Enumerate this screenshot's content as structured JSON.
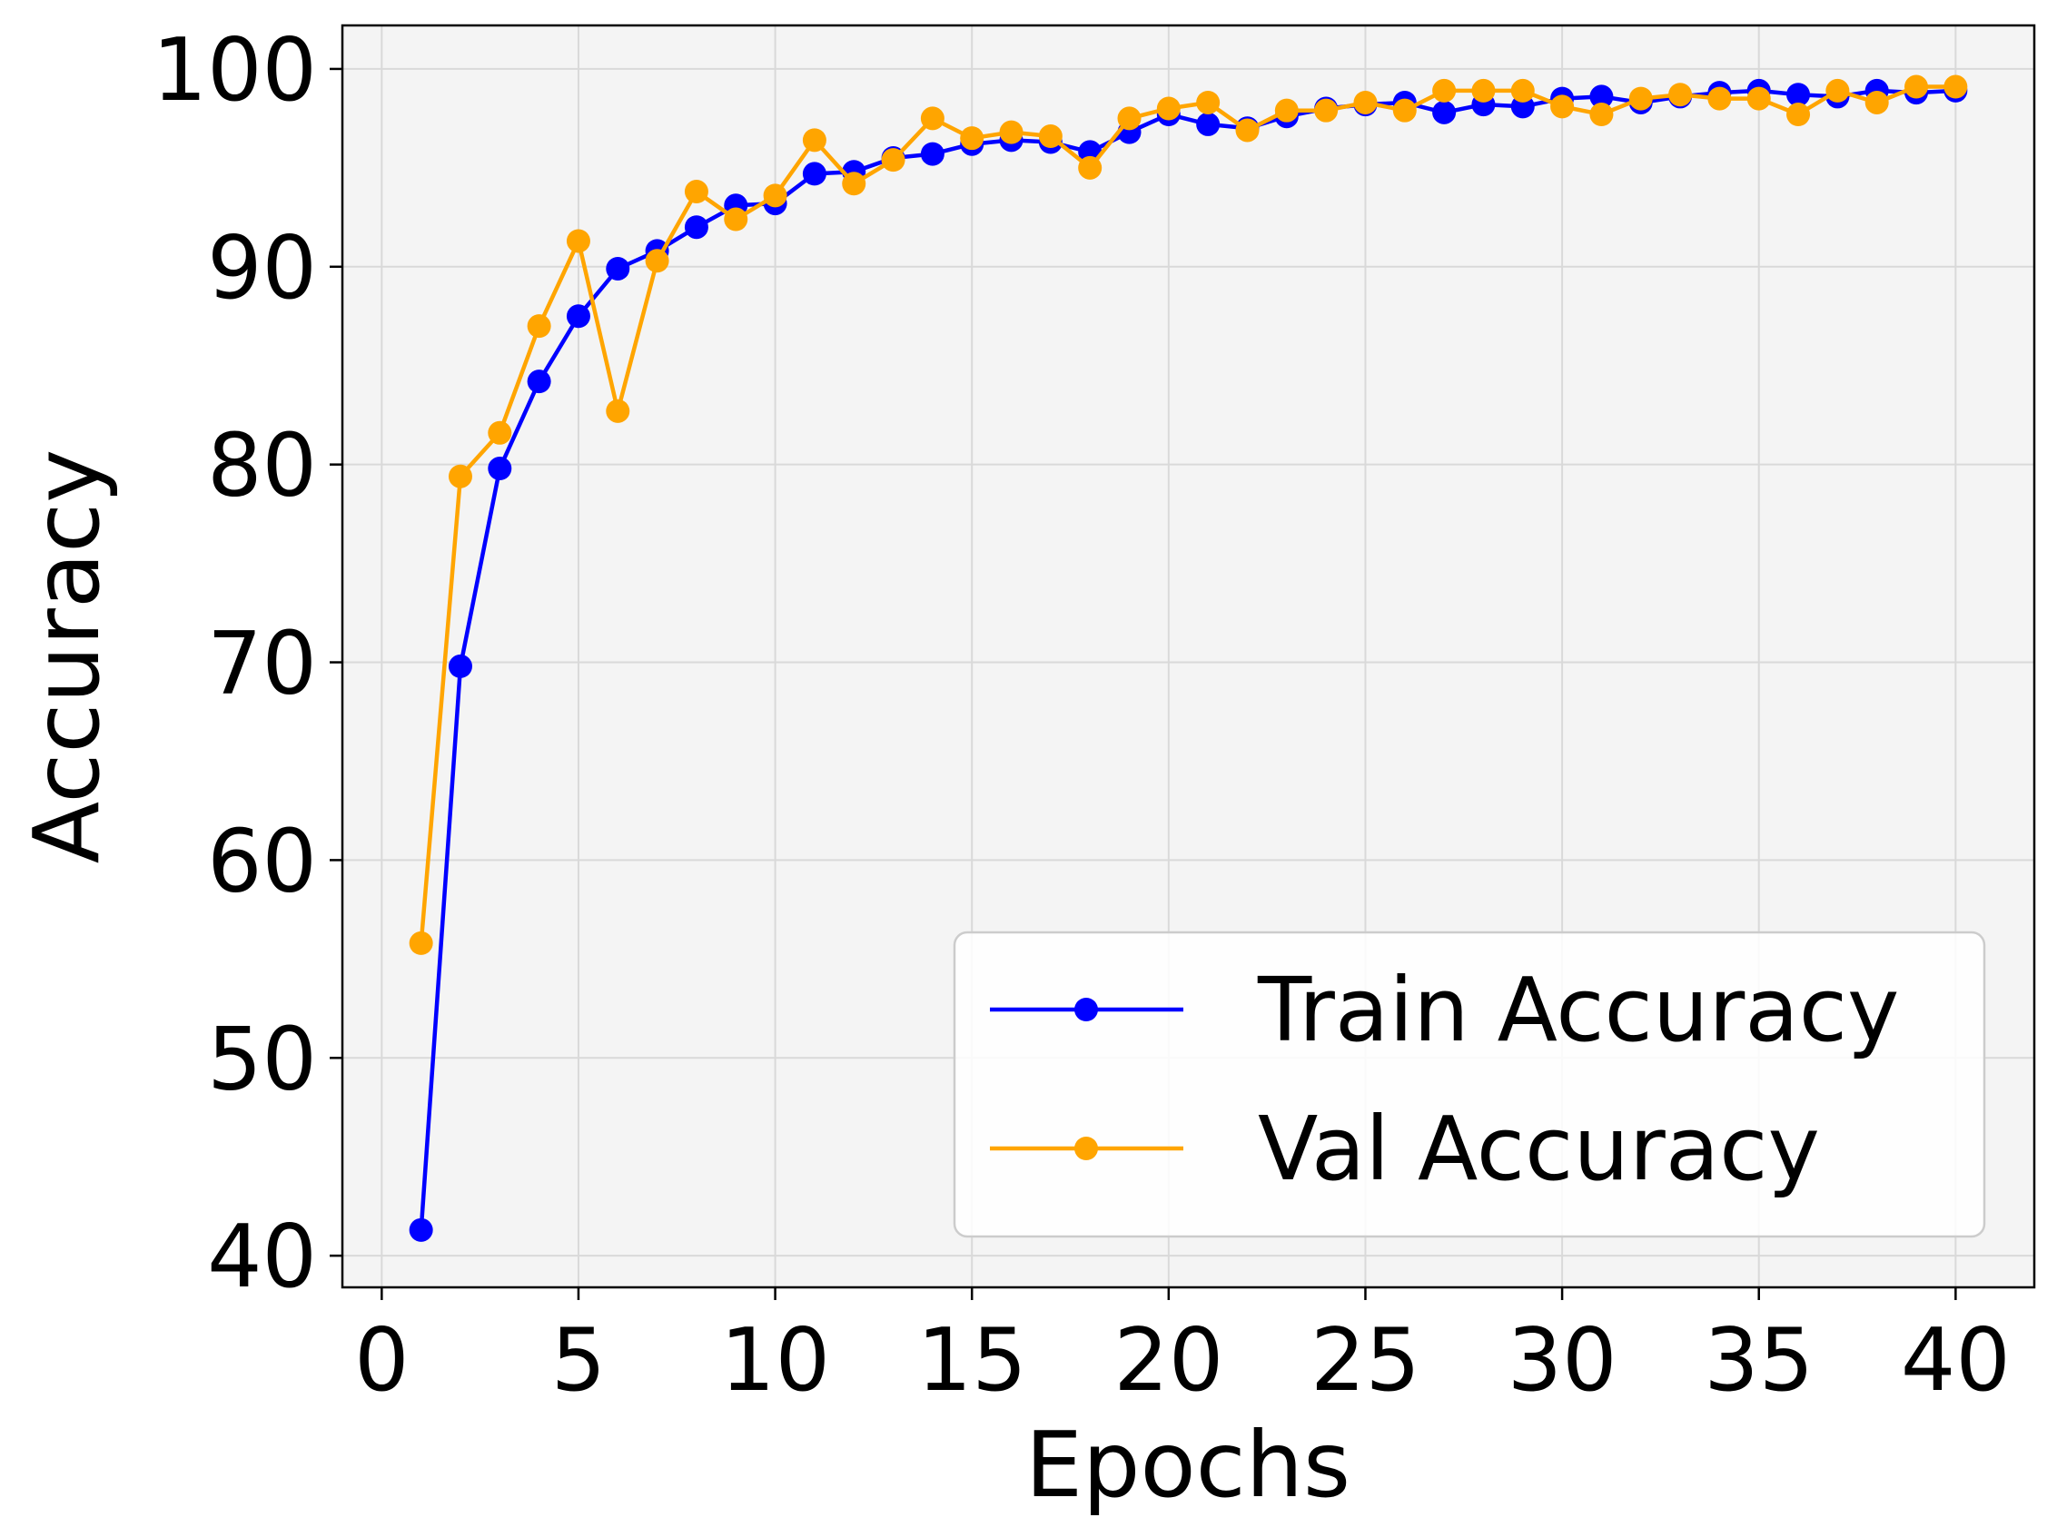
{
  "chart_data": {
    "type": "line",
    "xlabel": "Epochs",
    "ylabel": "Accuracy",
    "xlim": [
      -1,
      42
    ],
    "ylim": [
      38.4,
      102.2
    ],
    "xticks": [
      0,
      5,
      10,
      15,
      20,
      25,
      30,
      35,
      40
    ],
    "yticks": [
      40,
      50,
      60,
      70,
      80,
      90,
      100
    ],
    "grid": true,
    "legend_position": "lower right",
    "x": [
      1,
      2,
      3,
      4,
      5,
      6,
      7,
      8,
      9,
      10,
      11,
      12,
      13,
      14,
      15,
      16,
      17,
      18,
      19,
      20,
      21,
      22,
      23,
      24,
      25,
      26,
      27,
      28,
      29,
      30,
      31,
      32,
      33,
      34,
      35,
      36,
      37,
      38,
      39,
      40
    ],
    "series": [
      {
        "name": "Train Accuracy",
        "color": "#0000ff",
        "values": [
          41.3,
          69.8,
          79.8,
          84.2,
          87.5,
          89.9,
          90.8,
          92.0,
          93.1,
          93.2,
          94.7,
          94.8,
          95.5,
          95.7,
          96.2,
          96.4,
          96.3,
          95.8,
          96.8,
          97.7,
          97.2,
          97.0,
          97.6,
          98.0,
          98.2,
          98.3,
          97.8,
          98.2,
          98.1,
          98.5,
          98.6,
          98.3,
          98.6,
          98.8,
          98.9,
          98.7,
          98.6,
          98.9,
          98.8,
          98.9
        ]
      },
      {
        "name": "Val Accuracy",
        "color": "#ffa500",
        "values": [
          55.8,
          79.4,
          81.6,
          87.0,
          91.3,
          82.7,
          90.3,
          93.8,
          92.4,
          93.6,
          96.4,
          94.2,
          95.4,
          97.5,
          96.5,
          96.8,
          96.6,
          95.0,
          97.5,
          98.0,
          98.3,
          96.9,
          97.9,
          97.9,
          98.3,
          97.9,
          98.9,
          98.9,
          98.9,
          98.1,
          97.7,
          98.5,
          98.7,
          98.5,
          98.5,
          97.7,
          98.9,
          98.3,
          99.1,
          99.1
        ]
      }
    ]
  }
}
